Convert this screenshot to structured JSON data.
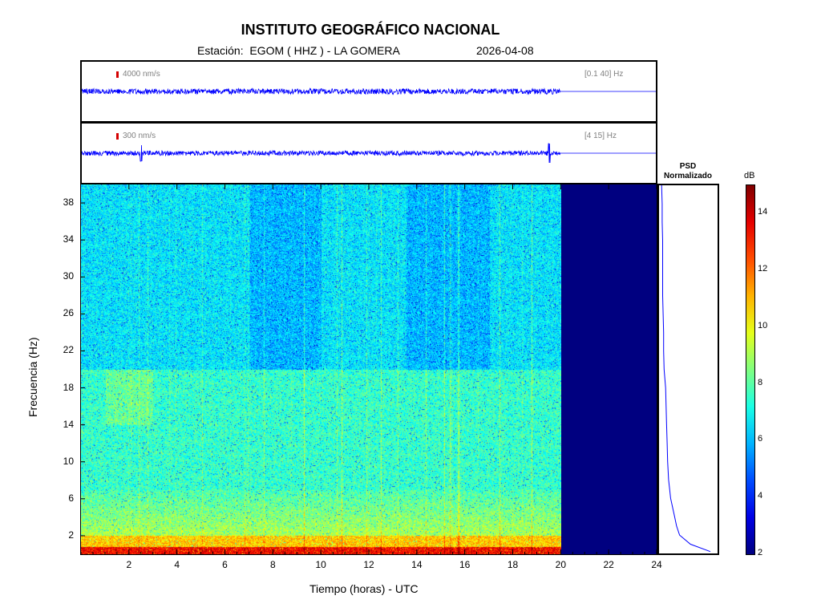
{
  "header": {
    "title": "INSTITUTO GEOGRÁFICO NACIONAL",
    "station": "Estación:  EGOM ( HHZ ) - LA GOMERA",
    "date": "2026-04-08"
  },
  "traces": [
    {
      "scale": "4000 nm/s",
      "band": "[0.1 40] Hz"
    },
    {
      "scale": "300 nm/s",
      "band": "[4 15] Hz"
    }
  ],
  "psd": {
    "line1": "PSD",
    "line2": "Normalizado"
  },
  "colors": {
    "trace": "#0000ff",
    "no_data": "#000080",
    "scale_bar": "#d40000"
  },
  "chart_data": {
    "type": "heatmap",
    "title": "INSTITUTO GEOGRÁFICO NACIONAL",
    "xlabel": "Tiempo (horas) - UTC",
    "ylabel": "Frecuencia  (Hz)",
    "xlim": [
      0,
      24
    ],
    "ylim": [
      0,
      40
    ],
    "xticks": [
      2,
      4,
      6,
      8,
      10,
      12,
      14,
      16,
      18,
      20,
      22,
      24
    ],
    "yticks": [
      2,
      6,
      10,
      14,
      18,
      22,
      26,
      30,
      34,
      38
    ],
    "data_end_hour": 20,
    "colorbar": {
      "label": "dB",
      "range": [
        2,
        15
      ],
      "ticks": [
        2,
        4,
        6,
        8,
        10,
        12,
        14
      ],
      "colormap": "jet"
    },
    "psd_normalized": {
      "freq": [
        0.2,
        1,
        2,
        3,
        4,
        5,
        6,
        7,
        8,
        10,
        12,
        14,
        16,
        18,
        20,
        22,
        24,
        26,
        28,
        30,
        32,
        34,
        36,
        38,
        40
      ],
      "value": [
        1.0,
        0.6,
        0.38,
        0.32,
        0.28,
        0.24,
        0.2,
        0.18,
        0.16,
        0.14,
        0.13,
        0.12,
        0.11,
        0.1,
        0.07,
        0.06,
        0.06,
        0.05,
        0.04,
        0.04,
        0.04,
        0.04,
        0.03,
        0.03,
        0.02
      ]
    }
  }
}
